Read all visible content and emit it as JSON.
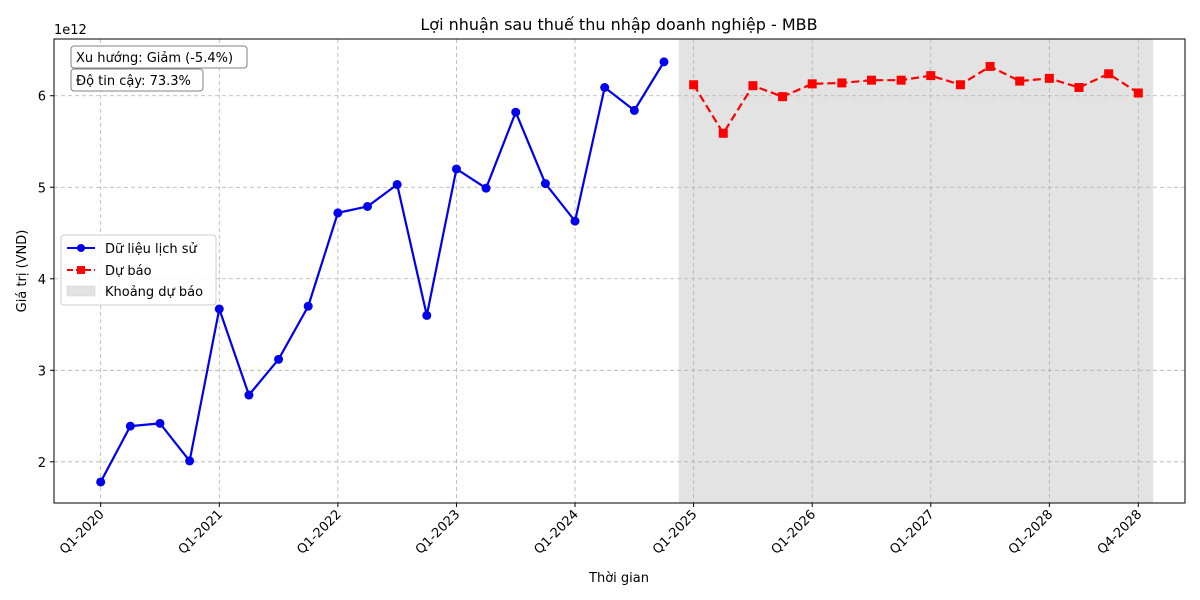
{
  "chart_data": {
    "type": "line",
    "title": "Lợi nhuận sau thuế thu nhập doanh nghiệp - MBB",
    "xlabel": "Thời gian",
    "ylabel": "Giá trị (VND)",
    "y_offset_label": "1e12",
    "ylim": [
      1.55,
      6.62
    ],
    "y_ticks": [
      2,
      3,
      4,
      5,
      6
    ],
    "x_tick_labels": [
      "Q1-2020",
      "Q1-2021",
      "Q1-2022",
      "Q1-2023",
      "Q1-2024",
      "Q1-2025",
      "Q1-2026",
      "Q1-2027",
      "Q1-2028",
      "Q4-2028"
    ],
    "grid": true,
    "legend_position": "center-left",
    "series": [
      {
        "name": "Dữ liệu lịch sử",
        "color": "#0000ee",
        "line_style": "solid",
        "marker": "circle",
        "x": [
          "Q1-2020",
          "Q2-2020",
          "Q3-2020",
          "Q4-2020",
          "Q1-2021",
          "Q2-2021",
          "Q3-2021",
          "Q4-2021",
          "Q1-2022",
          "Q2-2022",
          "Q3-2022",
          "Q4-2022",
          "Q1-2023",
          "Q2-2023",
          "Q3-2023",
          "Q4-2023",
          "Q1-2024",
          "Q2-2024",
          "Q3-2024",
          "Q4-2024"
        ],
        "values": [
          1.78,
          2.39,
          2.42,
          2.01,
          3.67,
          2.73,
          3.12,
          3.7,
          4.72,
          4.79,
          5.03,
          3.6,
          5.2,
          4.99,
          5.82,
          5.04,
          4.63,
          6.09,
          5.84,
          6.37
        ]
      },
      {
        "name": "Dự báo",
        "color": "#ff0000",
        "line_style": "dashed",
        "marker": "square",
        "x": [
          "Q1-2025",
          "Q2-2025",
          "Q3-2025",
          "Q4-2025",
          "Q1-2026",
          "Q2-2026",
          "Q3-2026",
          "Q4-2026",
          "Q1-2027",
          "Q2-2027",
          "Q3-2027",
          "Q4-2027",
          "Q1-2028",
          "Q2-2028",
          "Q3-2028",
          "Q4-2028"
        ],
        "values": [
          6.12,
          5.59,
          6.11,
          5.99,
          6.13,
          6.14,
          6.17,
          6.17,
          6.22,
          6.12,
          6.32,
          6.16,
          6.19,
          6.09,
          6.24,
          6.03
        ]
      }
    ],
    "forecast_band": {
      "name": "Khoảng dự báo",
      "color": "#e3e3e3",
      "x_range": [
        "Q1-2025",
        "Q4-2028"
      ]
    },
    "annotations": [
      "Xu hướng: Giảm (-5.4%)",
      "Độ tin cậy: 73.3%"
    ]
  }
}
